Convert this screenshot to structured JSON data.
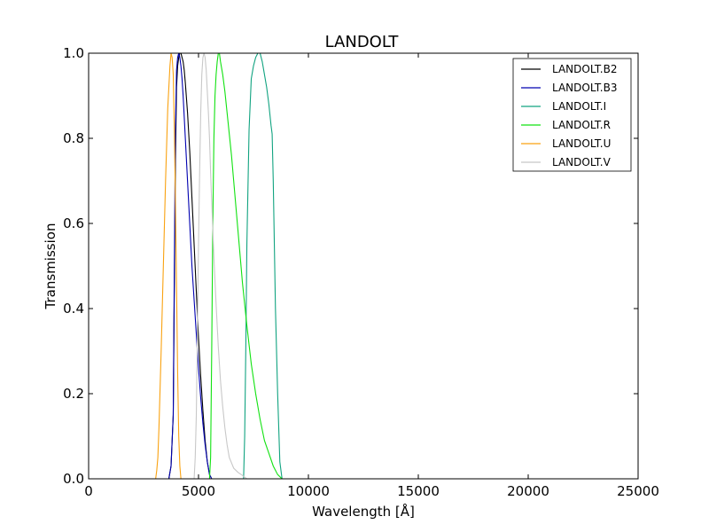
{
  "chart_data": {
    "type": "line",
    "title": "LANDOLT",
    "xlabel": "Wavelength [Å]",
    "ylabel": "Transmission",
    "xlim": [
      0,
      25000
    ],
    "ylim": [
      0,
      1.0
    ],
    "x_ticks": [
      0,
      5000,
      10000,
      15000,
      20000,
      25000
    ],
    "x_tick_labels": [
      "0",
      "5000",
      "10000",
      "15000",
      "20000",
      "25000"
    ],
    "y_ticks": [
      0,
      0.2,
      0.4,
      0.6,
      0.8,
      1.0
    ],
    "y_tick_labels": [
      "0.0",
      "0.2",
      "0.4",
      "0.6",
      "0.8",
      "1.0"
    ],
    "grid": false,
    "legend_position": "top-right",
    "series": [
      {
        "name": "LANDOLT.B2",
        "color": "#000000",
        "x": [
          3650,
          3750,
          3850,
          3900,
          3950,
          4000,
          4050,
          4100,
          4150,
          4200,
          4250,
          4300,
          4350,
          4400,
          4500,
          4600,
          4700,
          4800,
          4900,
          5000,
          5100,
          5200,
          5300,
          5400,
          5500,
          5600
        ],
        "y": [
          0.0,
          0.03,
          0.15,
          0.45,
          0.75,
          0.92,
          0.97,
          0.99,
          1.0,
          1.0,
          0.99,
          0.98,
          0.96,
          0.93,
          0.86,
          0.77,
          0.66,
          0.55,
          0.44,
          0.33,
          0.24,
          0.16,
          0.09,
          0.04,
          0.01,
          0.0
        ]
      },
      {
        "name": "LANDOLT.B3",
        "color": "#0000b0",
        "x": [
          3650,
          3750,
          3850,
          3900,
          3950,
          4000,
          4050,
          4100,
          4150,
          4200,
          4250,
          4300,
          4350,
          4400,
          4500,
          4600,
          4700,
          4800,
          4900,
          5000,
          5100,
          5200,
          5300,
          5400,
          5500,
          5600
        ],
        "y": [
          0.0,
          0.03,
          0.15,
          0.5,
          0.82,
          0.96,
          0.99,
          1.0,
          0.99,
          0.97,
          0.94,
          0.9,
          0.85,
          0.8,
          0.7,
          0.6,
          0.5,
          0.42,
          0.34,
          0.26,
          0.19,
          0.13,
          0.08,
          0.04,
          0.01,
          0.0
        ]
      },
      {
        "name": "LANDOLT.I",
        "color": "#11a380",
        "x": [
          7050,
          7100,
          7150,
          7200,
          7300,
          7400,
          7500,
          7600,
          7700,
          7800,
          7900,
          8000,
          8100,
          8200,
          8300,
          8350,
          8400,
          8450,
          8500,
          8600,
          8700,
          8800
        ],
        "y": [
          0.0,
          0.1,
          0.3,
          0.55,
          0.82,
          0.94,
          0.97,
          0.99,
          1.0,
          1.0,
          0.98,
          0.95,
          0.92,
          0.88,
          0.83,
          0.81,
          0.7,
          0.55,
          0.4,
          0.2,
          0.04,
          0.0
        ]
      },
      {
        "name": "LANDOLT.R",
        "color": "#11e211",
        "x": [
          5500,
          5550,
          5600,
          5650,
          5700,
          5750,
          5800,
          5850,
          5900,
          5950,
          6000,
          6100,
          6200,
          6300,
          6400,
          6500,
          6600,
          6800,
          7000,
          7200,
          7400,
          7600,
          7800,
          8000,
          8200,
          8400,
          8600,
          8800
        ],
        "y": [
          0.0,
          0.05,
          0.3,
          0.6,
          0.8,
          0.9,
          0.95,
          0.98,
          1.0,
          1.0,
          0.98,
          0.95,
          0.91,
          0.86,
          0.81,
          0.76,
          0.7,
          0.58,
          0.46,
          0.36,
          0.27,
          0.2,
          0.14,
          0.09,
          0.06,
          0.03,
          0.01,
          0.0
        ]
      },
      {
        "name": "LANDOLT.U",
        "color": "#f9a211",
        "x": [
          3050,
          3100,
          3150,
          3200,
          3300,
          3400,
          3500,
          3600,
          3700,
          3750,
          3800,
          3850,
          3900,
          3950,
          4000,
          4050,
          4100,
          4150,
          4200
        ],
        "y": [
          0.0,
          0.02,
          0.05,
          0.12,
          0.3,
          0.5,
          0.7,
          0.87,
          0.97,
          1.0,
          0.99,
          0.95,
          0.82,
          0.65,
          0.45,
          0.25,
          0.1,
          0.03,
          0.0
        ]
      },
      {
        "name": "LANDOLT.V",
        "color": "#c8c8c8",
        "x": [
          4800,
          4850,
          4900,
          4950,
          5000,
          5050,
          5100,
          5150,
          5200,
          5250,
          5300,
          5350,
          5400,
          5450,
          5500,
          5550,
          5600,
          5700,
          5800,
          5900,
          6000,
          6100,
          6200,
          6300,
          6400,
          6600,
          6800,
          7000,
          7200
        ],
        "y": [
          0.0,
          0.05,
          0.15,
          0.35,
          0.55,
          0.72,
          0.86,
          0.95,
          0.99,
          1.0,
          0.99,
          0.96,
          0.91,
          0.86,
          0.8,
          0.72,
          0.65,
          0.52,
          0.41,
          0.31,
          0.23,
          0.17,
          0.12,
          0.08,
          0.05,
          0.025,
          0.015,
          0.008,
          0.0
        ]
      }
    ]
  }
}
